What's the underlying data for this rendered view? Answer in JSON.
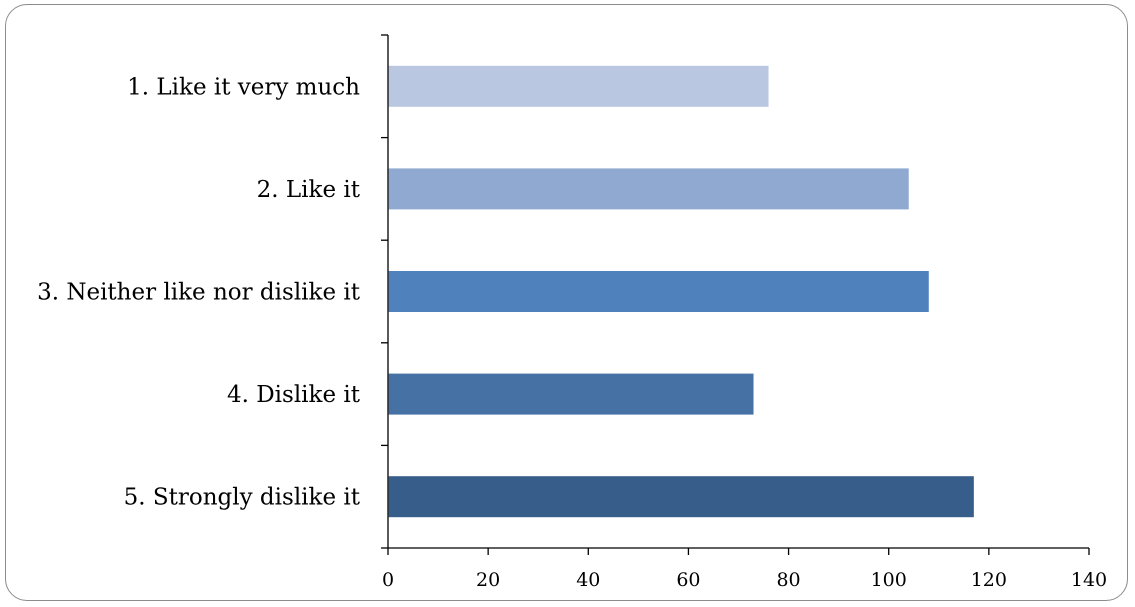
{
  "chart_data": {
    "type": "bar",
    "orientation": "horizontal",
    "categories": [
      "1. Like it very much",
      "2. Like it",
      "3. Neither like nor dislike it",
      "4. Dislike it",
      "5. Strongly dislike it"
    ],
    "values": [
      76,
      104,
      108,
      73,
      117
    ],
    "colors": [
      "#b9c7e0",
      "#8fa9d0",
      "#4f81bd",
      "#4671a5",
      "#375d8a"
    ],
    "xlim": [
      0,
      140
    ],
    "xticks": [
      "0",
      "20",
      "40",
      "60",
      "80",
      "100",
      "120",
      "140"
    ],
    "grid": false,
    "legend": false
  }
}
